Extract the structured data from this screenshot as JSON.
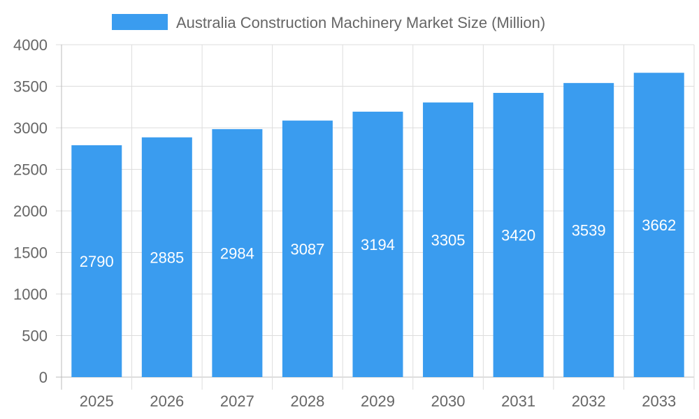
{
  "chart_data": {
    "type": "bar",
    "title": "",
    "xlabel": "",
    "ylabel": "",
    "categories": [
      "2025",
      "2026",
      "2027",
      "2028",
      "2029",
      "2030",
      "2031",
      "2032",
      "2033"
    ],
    "series": [
      {
        "name": "Australia Construction Machinery Market Size (Million)",
        "values": [
          2790,
          2885,
          2984,
          3087,
          3194,
          3305,
          3420,
          3539,
          3662
        ],
        "color": "#3a9cef"
      }
    ],
    "ylim": [
      0,
      4000
    ],
    "yticks": [
      0,
      500,
      1000,
      1500,
      2000,
      2500,
      3000,
      3500,
      4000
    ],
    "grid": true,
    "legend_position": "top",
    "data_labels": "inside-center"
  }
}
